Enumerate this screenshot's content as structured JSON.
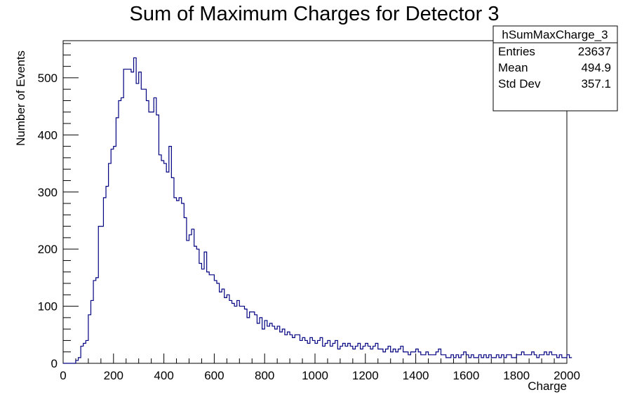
{
  "chart_data": {
    "type": "bar",
    "title": "Sum of Maximum Charges for Detector 3",
    "xlabel": "Charge",
    "ylabel": "Number of Events",
    "xlim": [
      0,
      2000
    ],
    "ylim": [
      0,
      565
    ],
    "bin_width": 10,
    "x_ticks": [
      0,
      200,
      400,
      600,
      800,
      1000,
      1200,
      1400,
      1600,
      1800,
      2000
    ],
    "y_ticks": [
      0,
      100,
      200,
      300,
      400,
      500
    ],
    "line_color": "#000080",
    "grid": false,
    "legend": "none",
    "stats_box": {
      "name": "hSumMaxCharge_3",
      "placement": "top-right",
      "rows": [
        {
          "label": "Entries",
          "value": "23637"
        },
        {
          "label": "Mean",
          "value": "494.9"
        },
        {
          "label": "Std Dev",
          "value": "357.1"
        }
      ]
    },
    "bin_start": 0,
    "values": [
      0,
      0,
      0,
      0,
      0,
      5,
      10,
      30,
      35,
      40,
      85,
      110,
      145,
      150,
      240,
      240,
      290,
      310,
      350,
      375,
      380,
      430,
      460,
      465,
      515,
      515,
      515,
      510,
      535,
      490,
      510,
      480,
      480,
      460,
      440,
      440,
      465,
      435,
      365,
      355,
      350,
      335,
      380,
      325,
      290,
      285,
      290,
      280,
      255,
      215,
      225,
      235,
      205,
      200,
      175,
      165,
      195,
      160,
      155,
      155,
      145,
      140,
      125,
      130,
      115,
      120,
      110,
      105,
      100,
      110,
      100,
      100,
      95,
      80,
      90,
      90,
      85,
      70,
      80,
      60,
      75,
      65,
      70,
      65,
      60,
      65,
      55,
      60,
      50,
      55,
      50,
      45,
      50,
      50,
      40,
      45,
      40,
      35,
      45,
      40,
      35,
      40,
      45,
      30,
      35,
      40,
      30,
      35,
      40,
      25,
      30,
      35,
      30,
      35,
      30,
      25,
      30,
      35,
      25,
      30,
      35,
      30,
      25,
      30,
      35,
      25,
      25,
      20,
      25,
      30,
      20,
      25,
      20,
      25,
      30,
      20,
      20,
      15,
      20,
      20,
      25,
      20,
      15,
      15,
      20,
      15,
      15,
      15,
      20,
      25,
      15,
      15,
      10,
      10,
      15,
      10,
      15,
      10,
      15,
      20,
      15,
      10,
      15,
      10,
      10,
      15,
      10,
      15,
      10,
      15,
      10,
      10,
      15,
      10,
      15,
      10,
      15,
      15,
      10,
      10,
      15,
      15,
      20,
      15,
      15,
      15,
      20,
      15,
      10,
      15,
      15,
      20,
      15,
      20,
      15,
      15,
      10,
      15,
      10,
      10,
      15,
      10
    ]
  }
}
